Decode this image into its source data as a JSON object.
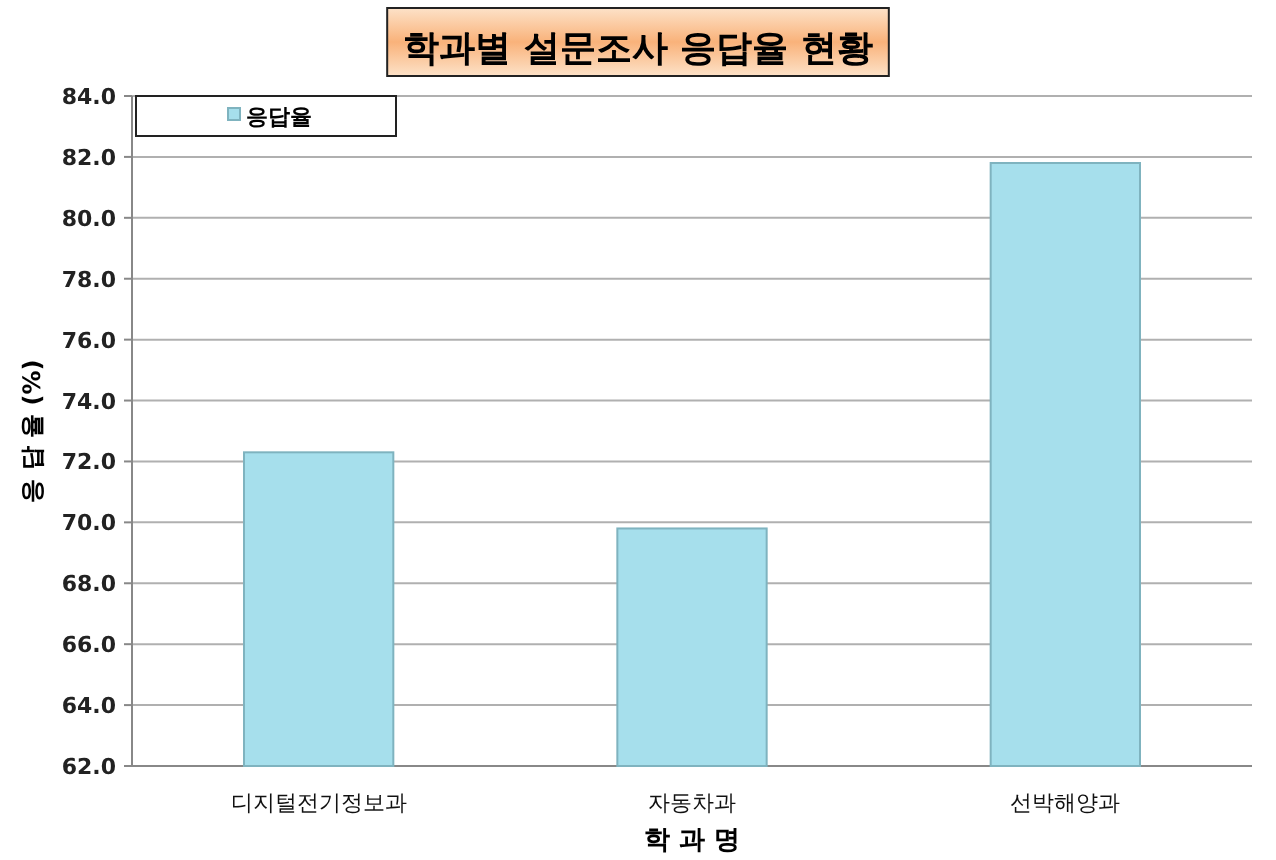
{
  "chart_data": {
    "type": "bar",
    "title": "학과별 설문조사 응답율 현황",
    "xlabel": "학 과 명",
    "ylabel": "응 답 율 (%)",
    "categories": [
      "디지털전기정보과",
      "자동차과",
      "선박해양과"
    ],
    "series": [
      {
        "name": "응답율",
        "color": "#a6dfec",
        "values": [
          72.3,
          69.8,
          81.8
        ]
      }
    ],
    "ylim": [
      62,
      84
    ],
    "yticks": [
      {
        "value": 62,
        "label": "62.0"
      },
      {
        "value": 64,
        "label": "64.0"
      },
      {
        "value": 66,
        "label": "66.0"
      },
      {
        "value": 68,
        "label": "68.0"
      },
      {
        "value": 70,
        "label": "70.0"
      },
      {
        "value": 72,
        "label": "72.0"
      },
      {
        "value": 74,
        "label": "74.0"
      },
      {
        "value": 76,
        "label": "76.0"
      },
      {
        "value": 78,
        "label": "78.0"
      },
      {
        "value": 80,
        "label": "80.0"
      },
      {
        "value": 82,
        "label": "82.0"
      },
      {
        "value": 84,
        "label": "84.0"
      }
    ],
    "grid": "y",
    "legend": "top left"
  }
}
